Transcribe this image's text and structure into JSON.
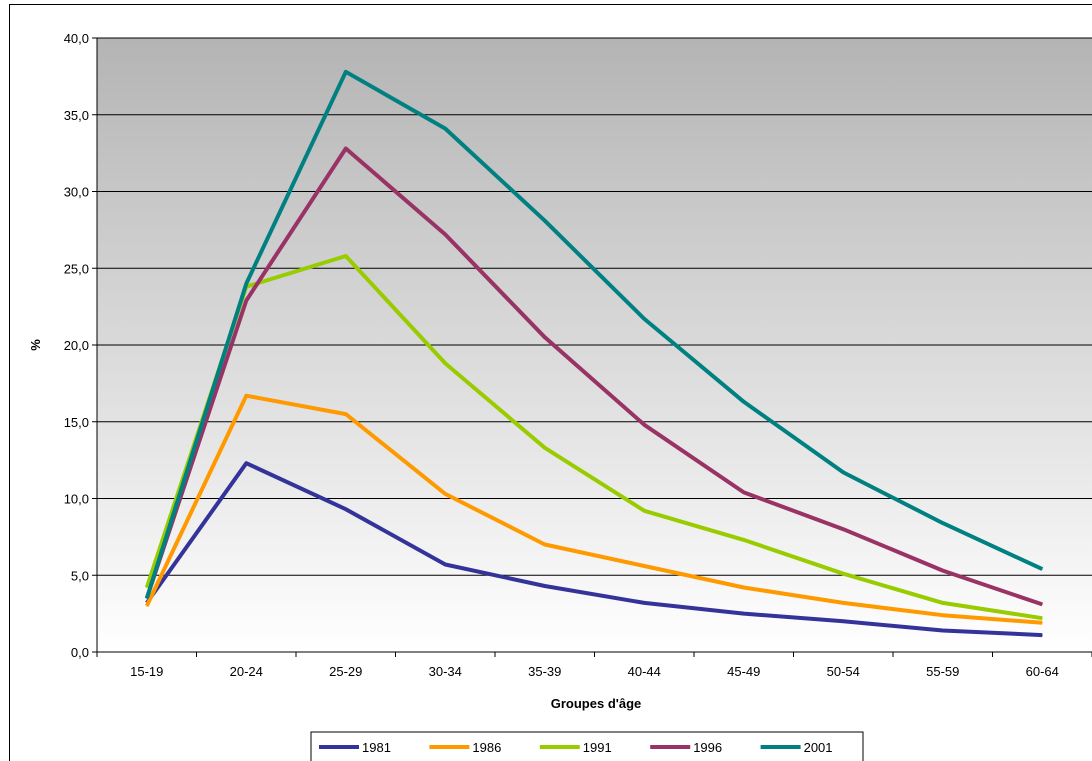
{
  "chart_data": {
    "type": "line",
    "title": "",
    "xlabel": "Groupes d'âge",
    "ylabel": "%",
    "ylim": [
      0,
      40
    ],
    "yticks": [
      "0,0",
      "5,0",
      "10,0",
      "15,0",
      "20,0",
      "25,0",
      "30,0",
      "35,0",
      "40,0"
    ],
    "categories": [
      "15-19",
      "20-24",
      "25-29",
      "30-34",
      "35-39",
      "40-44",
      "45-49",
      "50-54",
      "55-59",
      "60-64"
    ],
    "grid": true,
    "legend_position": "bottom",
    "series": [
      {
        "name": "1981",
        "color": "#333399",
        "values": [
          3.2,
          12.3,
          9.3,
          5.7,
          4.3,
          3.2,
          2.5,
          2.0,
          1.4,
          1.1
        ]
      },
      {
        "name": "1986",
        "color": "#FF9900",
        "values": [
          3.0,
          16.7,
          15.5,
          10.3,
          7.0,
          5.6,
          4.2,
          3.2,
          2.4,
          1.9
        ]
      },
      {
        "name": "1991",
        "color": "#99CC00",
        "values": [
          4.2,
          23.8,
          25.8,
          18.8,
          13.3,
          9.2,
          7.3,
          5.1,
          3.2,
          2.2
        ]
      },
      {
        "name": "1996",
        "color": "#993366",
        "values": [
          3.5,
          22.9,
          32.8,
          27.2,
          20.5,
          14.8,
          10.4,
          8.0,
          5.3,
          3.1
        ]
      },
      {
        "name": "2001",
        "color": "#008080",
        "values": [
          3.5,
          24.0,
          37.8,
          34.1,
          28.1,
          21.7,
          16.3,
          11.7,
          8.4,
          5.4
        ]
      }
    ]
  }
}
